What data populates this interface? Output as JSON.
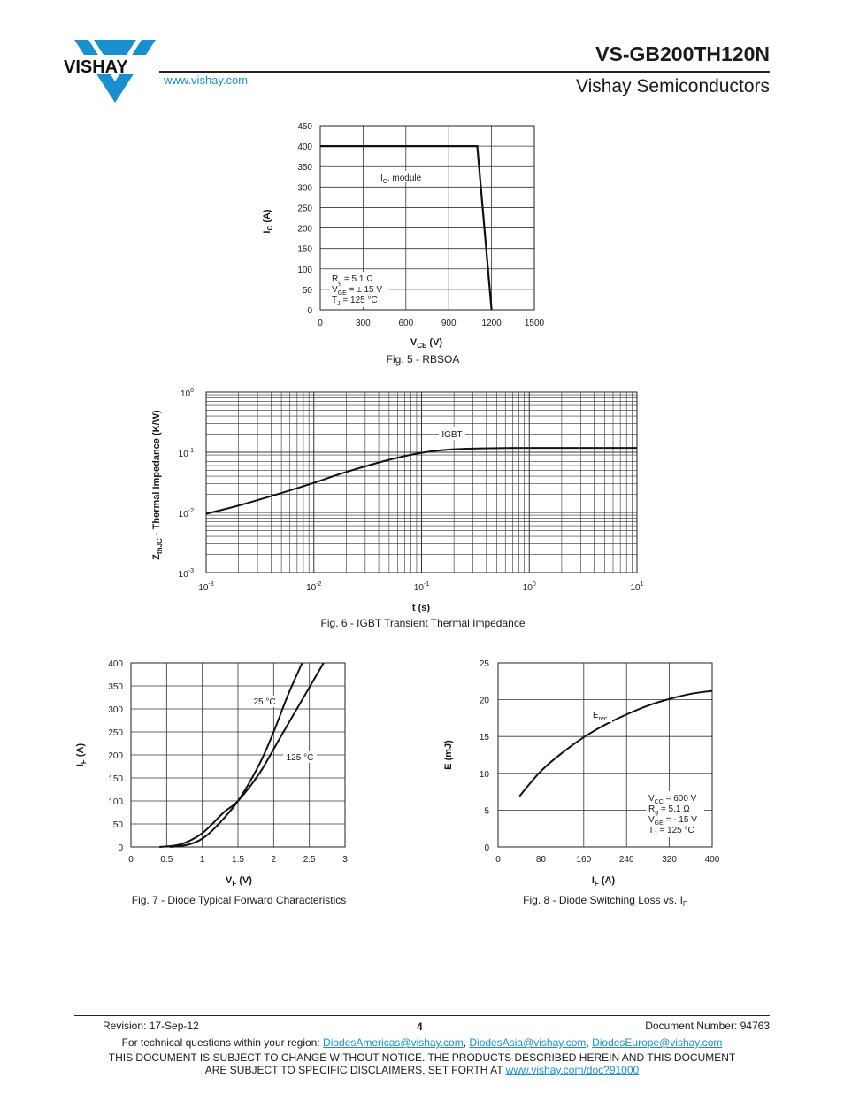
{
  "header": {
    "brand": "VISHAY",
    "website": "www.vishay.com",
    "part_number": "VS-GB200TH120N",
    "company": "Vishay Semiconductors"
  },
  "figures": {
    "fig5": {
      "caption": "Fig. 5 - RBSOA",
      "curve_label": "I",
      "curve_label_sub": "C",
      "curve_label_rest": ", module",
      "conditions": [
        "Rg = 5.1 Ω",
        "VGE = ± 15 V",
        "TJ = 125 °C"
      ],
      "xlabel": "VCE (V)",
      "ylabel": "IC (A)"
    },
    "fig6": {
      "caption": "Fig. 6 - IGBT Transient Thermal Impedance",
      "curve_label": "IGBT",
      "xlabel": "t (s)",
      "ylabel": "ZthJC - Thermal Impedance (K/W)"
    },
    "fig7": {
      "caption": "Fig. 7 - Diode Typical Forward Characteristics",
      "label_25": "25 °C",
      "label_125": "125 °C",
      "xlabel": "VF (V)",
      "ylabel": "IF (A)"
    },
    "fig8": {
      "caption": "Fig. 8 - Diode Switching Loss vs. IF",
      "curve_label": "Erec",
      "conditions": [
        "VCC = 600 V",
        "Rg = 5.1 Ω",
        "VGE = - 15 V",
        "TJ = 125 °C"
      ],
      "xlabel": "IF (A)",
      "ylabel": "E (mJ)"
    }
  },
  "chart_data": [
    {
      "type": "line",
      "title": "Fig. 5 - RBSOA",
      "xlabel": "VCE (V)",
      "ylabel": "IC (A)",
      "xlim": [
        0,
        1500
      ],
      "ylim": [
        0,
        450
      ],
      "xticks": [
        0,
        300,
        600,
        900,
        1200,
        1500
      ],
      "yticks": [
        0,
        50,
        100,
        150,
        200,
        250,
        300,
        350,
        400,
        450
      ],
      "series": [
        {
          "name": "IC, module",
          "x": [
            0,
            1100,
            1200
          ],
          "y": [
            400,
            400,
            0
          ]
        }
      ]
    },
    {
      "type": "line",
      "title": "Fig. 6 - IGBT Transient Thermal Impedance",
      "xlabel": "t (s)",
      "ylabel": "ZthJC - Thermal Impedance (K/W)",
      "xscale": "log",
      "yscale": "log",
      "xlim": [
        0.001,
        10
      ],
      "ylim": [
        0.001,
        1
      ],
      "xticks": [
        "10-3",
        "10-2",
        "10-1",
        "100",
        "101"
      ],
      "yticks": [
        "10-3",
        "10-2",
        "10-1",
        "100"
      ],
      "series": [
        {
          "name": "IGBT",
          "x": [
            0.001,
            0.002,
            0.005,
            0.01,
            0.02,
            0.05,
            0.1,
            0.2,
            0.5,
            1,
            10
          ],
          "y": [
            0.0095,
            0.013,
            0.021,
            0.031,
            0.047,
            0.075,
            0.098,
            0.112,
            0.117,
            0.118,
            0.118
          ]
        }
      ]
    },
    {
      "type": "line",
      "title": "Fig. 7 - Diode Typical Forward Characteristics",
      "xlabel": "VF (V)",
      "ylabel": "IF (A)",
      "xlim": [
        0,
        3
      ],
      "ylim": [
        0,
        400
      ],
      "xticks": [
        0,
        0.5,
        1,
        1.5,
        2,
        2.5,
        3
      ],
      "yticks": [
        0,
        50,
        100,
        150,
        200,
        250,
        300,
        350,
        400
      ],
      "series": [
        {
          "name": "25 °C",
          "x": [
            0.55,
            0.8,
            1.0,
            1.2,
            1.5,
            1.8,
            2.0,
            2.2,
            2.4
          ],
          "y": [
            0,
            5,
            18,
            45,
            100,
            180,
            250,
            330,
            400
          ]
        },
        {
          "name": "125 °C",
          "x": [
            0.4,
            0.7,
            1.0,
            1.3,
            1.5,
            1.8,
            2.1,
            2.4,
            2.7
          ],
          "y": [
            0,
            6,
            30,
            75,
            100,
            160,
            240,
            320,
            400
          ]
        }
      ]
    },
    {
      "type": "line",
      "title": "Fig. 8 - Diode Switching Loss vs. IF",
      "xlabel": "IF (A)",
      "ylabel": "E (mJ)",
      "xlim": [
        0,
        400
      ],
      "ylim": [
        0,
        25
      ],
      "xticks": [
        0,
        80,
        160,
        240,
        320,
        400
      ],
      "yticks": [
        0,
        5,
        10,
        15,
        20,
        25
      ],
      "series": [
        {
          "name": "Erec",
          "x": [
            40,
            80,
            120,
            160,
            200,
            240,
            280,
            320,
            360,
            400
          ],
          "y": [
            6.9,
            10.3,
            12.8,
            14.9,
            16.6,
            18.0,
            19.2,
            20.1,
            20.8,
            21.2
          ]
        }
      ]
    }
  ],
  "footer": {
    "revision": "Revision: 17-Sep-12",
    "page": "4",
    "document_number": "Document Number: 94763",
    "questions_prefix": "For technical questions within your region:",
    "email_americas": "DiodesAmericas@vishay.com",
    "email_asia": "DiodesAsia@vishay.com",
    "email_europe": "DiodesEurope@vishay.com",
    "notice_line1": "THIS DOCUMENT IS SUBJECT TO CHANGE WITHOUT NOTICE. THE PRODUCTS DESCRIBED HEREIN AND THIS DOCUMENT",
    "notice_line2_prefix": "ARE SUBJECT TO SPECIFIC DISCLAIMERS, SET FORTH AT",
    "notice_link": "www.vishay.com/doc?91000"
  }
}
